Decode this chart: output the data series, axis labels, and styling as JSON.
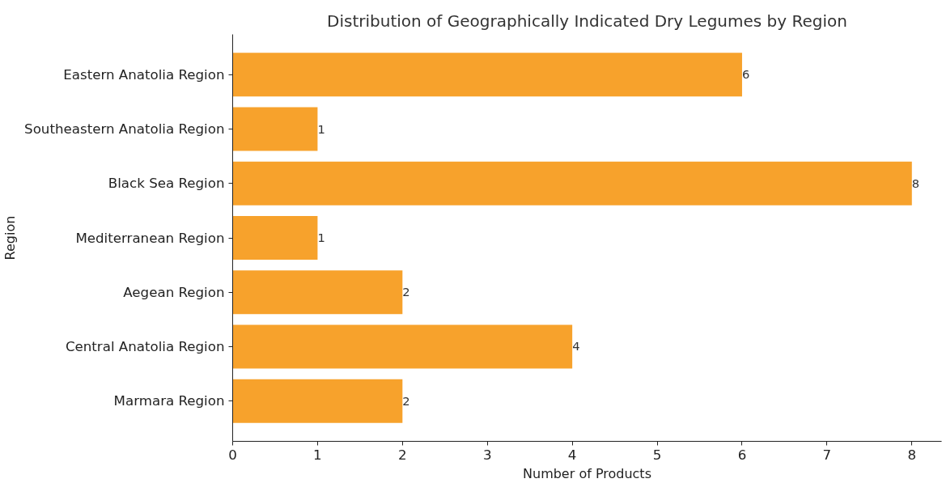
{
  "chart_data": {
    "type": "bar",
    "orientation": "horizontal",
    "title": "Distribution of Geographically Indicated Dry Legumes by Region",
    "xlabel": "Number of Products",
    "ylabel": "Region",
    "categories": [
      "Eastern Anatolia Region",
      "Southeastern Anatolia Region",
      "Black Sea Region",
      "Mediterranean Region",
      "Aegean Region",
      "Central Anatolia Region",
      "Marmara Region"
    ],
    "values": [
      6,
      1,
      8,
      1,
      2,
      4,
      2
    ],
    "color": "#f7a22c",
    "xlim": [
      0,
      8.35
    ],
    "xticks": [
      0,
      1,
      2,
      3,
      4,
      5,
      6,
      7,
      8
    ],
    "grid": false,
    "data_labels": true
  }
}
